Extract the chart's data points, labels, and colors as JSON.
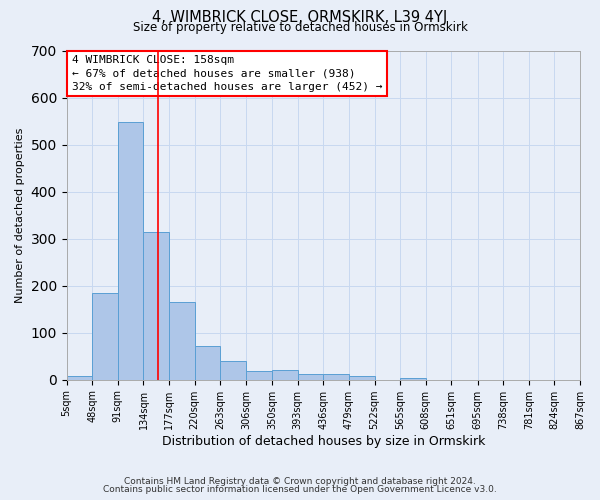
{
  "title": "4, WIMBRICK CLOSE, ORMSKIRK, L39 4YJ",
  "subtitle": "Size of property relative to detached houses in Ormskirk",
  "xlabel": "Distribution of detached houses by size in Ormskirk",
  "ylabel": "Number of detached properties",
  "bar_color": "#aec6e8",
  "bar_edge_color": "#5a9fd4",
  "background_color": "#e8eef8",
  "grid_color": "#c8d8f0",
  "bin_labels": [
    "5sqm",
    "48sqm",
    "91sqm",
    "134sqm",
    "177sqm",
    "220sqm",
    "263sqm",
    "306sqm",
    "350sqm",
    "393sqm",
    "436sqm",
    "479sqm",
    "522sqm",
    "565sqm",
    "608sqm",
    "651sqm",
    "695sqm",
    "738sqm",
    "781sqm",
    "824sqm",
    "867sqm"
  ],
  "bar_values": [
    8,
    185,
    548,
    315,
    165,
    72,
    40,
    18,
    20,
    12,
    12,
    8,
    0,
    3,
    0,
    0,
    0,
    0,
    0,
    0
  ],
  "bin_edges": [
    5,
    48,
    91,
    134,
    177,
    220,
    263,
    306,
    350,
    393,
    436,
    479,
    522,
    565,
    608,
    651,
    695,
    738,
    781,
    824,
    867
  ],
  "property_size": 158,
  "annotation_title": "4 WIMBRICK CLOSE: 158sqm",
  "annotation_line1": "← 67% of detached houses are smaller (938)",
  "annotation_line2": "32% of semi-detached houses are larger (452) →",
  "vline_x": 158,
  "ylim": [
    0,
    700
  ],
  "yticks": [
    0,
    100,
    200,
    300,
    400,
    500,
    600,
    700
  ],
  "footer1": "Contains HM Land Registry data © Crown copyright and database right 2024.",
  "footer2": "Contains public sector information licensed under the Open Government Licence v3.0."
}
